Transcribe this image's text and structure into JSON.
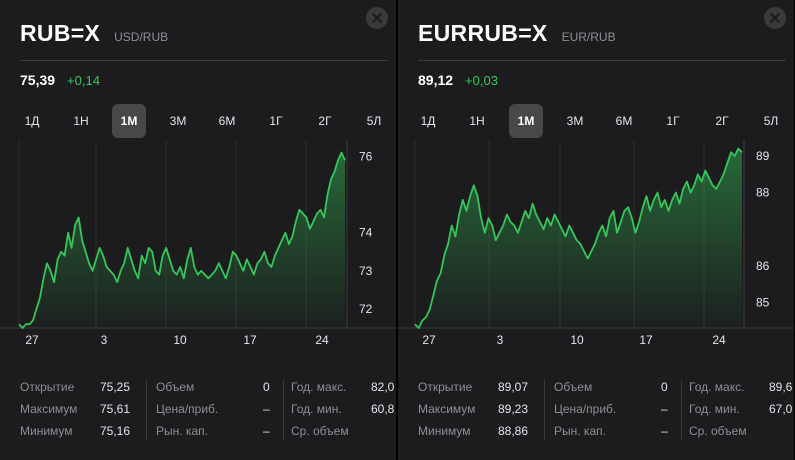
{
  "panels": [
    {
      "symbol": "RUB=X",
      "pair": "USD/RUB",
      "price": "75,39",
      "change": "+0,14",
      "tabs": [
        "1Д",
        "1Н",
        "1М",
        "3М",
        "6М",
        "1Г",
        "2Г",
        "5Л"
      ],
      "active_tab": "1М",
      "stats": {
        "open_label": "Открытие",
        "open_value": "75,25",
        "high_label": "Максимум",
        "high_value": "75,61",
        "low_label": "Минимум",
        "low_value": "75,16",
        "volume_label": "Объем",
        "volume_value": "0",
        "pe_label": "Цена/приб.",
        "pe_value": "–",
        "mcap_label": "Рын. кап.",
        "mcap_value": "–",
        "yhigh_label": "Год. макс.",
        "yhigh_value": "82,0",
        "ylow_label": "Год. мин.",
        "ylow_value": "60,8",
        "avgvol_label": "Ср. объем",
        "avgvol_value": ""
      }
    },
    {
      "symbol": "EURRUB=X",
      "pair": "EUR/RUB",
      "price": "89,12",
      "change": "+0,03",
      "tabs": [
        "1Д",
        "1Н",
        "1М",
        "3М",
        "6М",
        "1Г",
        "2Г",
        "5Л"
      ],
      "active_tab": "1М",
      "stats": {
        "open_label": "Открытие",
        "open_value": "89,07",
        "high_label": "Максимум",
        "high_value": "89,23",
        "low_label": "Минимум",
        "low_value": "88,86",
        "volume_label": "Объем",
        "volume_value": "0",
        "pe_label": "Цена/приб.",
        "pe_value": "–",
        "mcap_label": "Рын. кап.",
        "mcap_value": "–",
        "yhigh_label": "Год. макс.",
        "yhigh_value": "89,6",
        "ylow_label": "Год. мин.",
        "ylow_value": "67,0",
        "avgvol_label": "Ср. объем",
        "avgvol_value": ""
      }
    }
  ],
  "colors": {
    "accent_green": "#34c759",
    "panel_bg": "#1c1c1e",
    "active_tab_bg": "#48484a"
  },
  "icons": {
    "close": "close-icon"
  },
  "chart_data": [
    {
      "type": "area",
      "x_ticks": [
        "27",
        "3",
        "10",
        "17",
        "24"
      ],
      "y_ticks": [
        "72",
        "73",
        "74",
        "76"
      ],
      "ylim": [
        71.5,
        76.3
      ],
      "values": [
        71.6,
        71.5,
        71.6,
        71.6,
        71.7,
        72.0,
        72.3,
        72.8,
        73.2,
        73.0,
        72.7,
        73.3,
        73.5,
        73.4,
        74.0,
        73.6,
        74.2,
        74.4,
        73.8,
        73.5,
        73.2,
        73.0,
        73.3,
        73.6,
        73.4,
        73.1,
        73.0,
        72.9,
        72.7,
        73.0,
        73.2,
        73.6,
        73.3,
        73.0,
        72.8,
        73.4,
        73.2,
        73.6,
        73.5,
        73.0,
        72.9,
        73.4,
        73.6,
        73.3,
        73.0,
        72.9,
        73.1,
        72.8,
        73.3,
        73.6,
        73.1,
        72.9,
        73.0,
        72.9,
        72.8,
        72.9,
        73.0,
        73.2,
        73.0,
        72.8,
        73.1,
        73.5,
        73.4,
        73.2,
        73.0,
        73.3,
        73.1,
        72.9,
        73.2,
        73.3,
        73.5,
        73.2,
        73.1,
        73.4,
        73.6,
        73.8,
        74.0,
        73.7,
        73.9,
        74.3,
        74.6,
        74.5,
        74.4,
        74.1,
        74.3,
        74.5,
        74.6,
        74.4,
        75.0,
        75.4,
        75.6,
        75.9,
        76.1,
        75.9
      ]
    },
    {
      "type": "area",
      "x_ticks": [
        "27",
        "3",
        "10",
        "17",
        "24"
      ],
      "y_ticks": [
        "85",
        "86",
        "88",
        "89"
      ],
      "ylim": [
        84.3,
        89.3
      ],
      "values": [
        84.4,
        84.3,
        84.5,
        84.6,
        84.8,
        85.2,
        85.6,
        85.8,
        86.3,
        86.6,
        87.1,
        86.8,
        87.4,
        87.8,
        87.5,
        87.9,
        88.2,
        87.9,
        87.3,
        86.9,
        87.3,
        87.1,
        86.7,
        86.9,
        87.1,
        87.4,
        87.2,
        87.1,
        86.9,
        87.2,
        87.5,
        87.3,
        87.7,
        87.4,
        87.2,
        87.0,
        87.3,
        87.1,
        87.4,
        87.2,
        87.0,
        86.8,
        87.1,
        86.9,
        86.7,
        86.6,
        86.4,
        86.2,
        86.4,
        86.6,
        86.9,
        87.1,
        86.8,
        87.3,
        87.5,
        86.9,
        87.2,
        87.5,
        87.6,
        87.3,
        86.9,
        87.2,
        87.6,
        87.9,
        87.5,
        87.8,
        88.0,
        87.6,
        87.8,
        87.5,
        87.8,
        88.0,
        87.7,
        88.1,
        88.3,
        88.0,
        88.2,
        88.5,
        88.3,
        88.6,
        88.4,
        88.2,
        88.1,
        88.3,
        88.5,
        88.8,
        89.1,
        89.0,
        89.2,
        89.1
      ]
    }
  ]
}
